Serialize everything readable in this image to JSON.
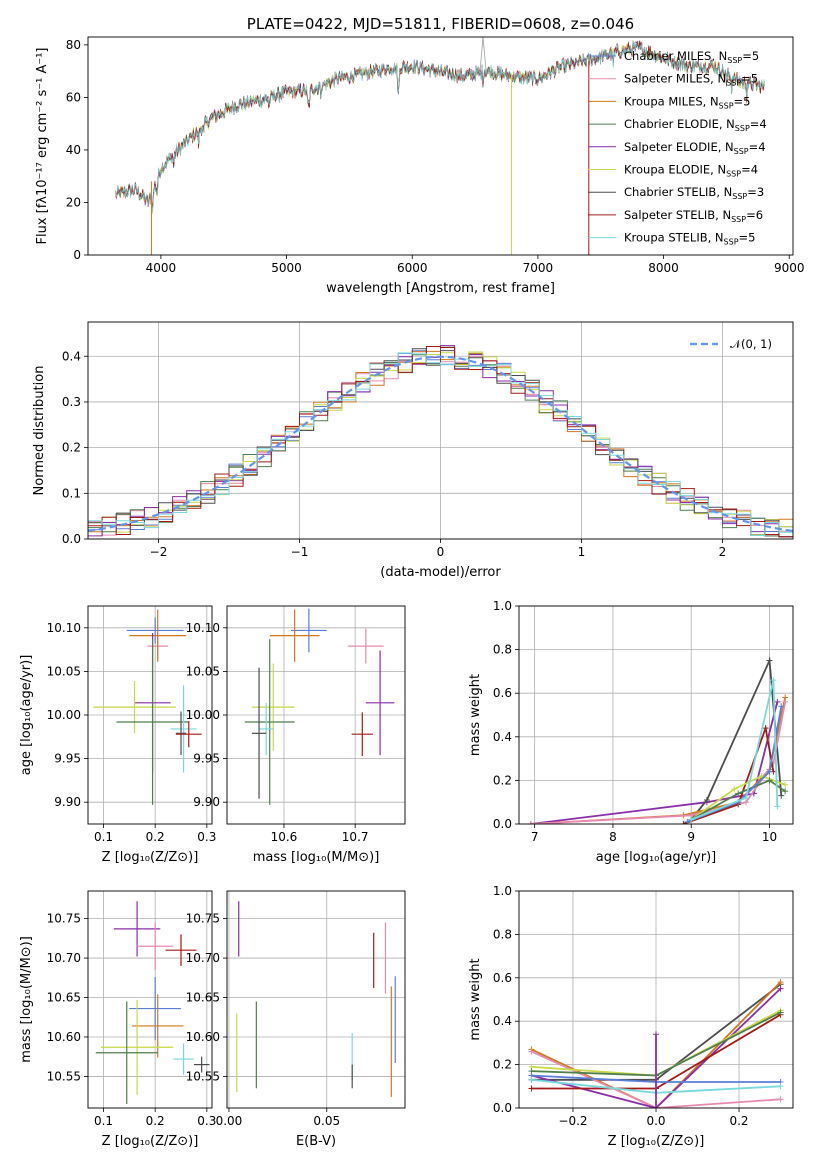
{
  "chart_data": [
    {
      "id": "spectrum",
      "type": "line",
      "title": "PLATE=0422, MJD=51811, FIBERID=0608, z=0.046",
      "xlabel": "wavelength [Angstrom, rest frame]",
      "ylabel": "Flux [fλ10⁻¹⁷ erg cm⁻² s⁻¹ A⁻¹]",
      "xlim": [
        3420,
        9030
      ],
      "ylim": [
        0,
        83
      ],
      "xticks": [
        4000,
        5000,
        6000,
        7000,
        8000,
        9000
      ],
      "yticks": [
        0,
        20,
        40,
        60,
        80
      ],
      "grid": false,
      "legend_position": "top-right",
      "continuum_x": [
        3640,
        3800,
        3900,
        4000,
        4100,
        4200,
        4400,
        4600,
        4800,
        5000,
        5200,
        5400,
        5600,
        5800,
        6000,
        6200,
        6400,
        6600,
        6800,
        7000,
        7200,
        7400,
        7600,
        7800,
        8000,
        8200,
        8400,
        8600,
        8800
      ],
      "continuum_y": [
        23,
        25,
        20,
        33,
        38,
        43,
        52,
        57,
        59,
        62,
        63,
        67,
        69,
        71,
        72,
        70,
        68,
        70,
        68,
        67,
        72,
        74,
        77,
        79,
        75,
        72,
        72,
        66,
        64
      ],
      "series": [
        {
          "name": "Chabrier MILES",
          "nssp": "5",
          "color": "#5a7fd6"
        },
        {
          "name": "Salpeter MILES",
          "nssp": "5",
          "color": "#e88aaf"
        },
        {
          "name": "Kroupa MILES",
          "nssp": "5",
          "color": "#d2781e"
        },
        {
          "name": "Chabrier ELODIE",
          "nssp": "4",
          "color": "#4f7f4c"
        },
        {
          "name": "Salpeter ELODIE",
          "nssp": "4",
          "color": "#8c2dab"
        },
        {
          "name": "Kroupa ELODIE",
          "nssp": "4",
          "color": "#c9d94a"
        },
        {
          "name": "Chabrier STELIB",
          "nssp": "3",
          "color": "#4d4d4d"
        },
        {
          "name": "Salpeter STELIB",
          "nssp": "6",
          "color": "#a61a1a"
        },
        {
          "name": "Kroupa STELIB",
          "nssp": "5",
          "color": "#79d9dd"
        }
      ]
    },
    {
      "id": "residuals",
      "type": "line",
      "xlabel": "(data-model)/error",
      "ylabel": "Normed distribution",
      "xlim": [
        -2.5,
        2.5
      ],
      "ylim": [
        0,
        0.475
      ],
      "xticks": [
        -2,
        -1,
        0,
        1,
        2
      ],
      "yticks": [
        0.0,
        0.1,
        0.2,
        0.3,
        0.4
      ],
      "grid": true,
      "legend_position": "top-right",
      "reference_label": "𝒩(0, 1)",
      "reference_color": "#6495ed"
    },
    {
      "id": "age-vs-Z",
      "type": "scatter",
      "xlabel": "Z [log₁₀(Z/Z⊙)]",
      "ylabel": "age  [log₁₀(age/yr)]",
      "xlim": [
        0.07,
        0.31
      ],
      "ylim": [
        9.875,
        10.125
      ],
      "xticks": [
        0.1,
        0.2,
        0.3
      ],
      "yticks": [
        9.9,
        9.95,
        10.0,
        10.05,
        10.1
      ],
      "points": [
        {
          "x": 0.2,
          "y": 10.097,
          "xerr": 0.055,
          "yerr": 0.015,
          "color": "#5a7fd6"
        },
        {
          "x": 0.205,
          "y": 10.079,
          "xerr": 0.02,
          "yerr": 0.015,
          "color": "#e88aaf"
        },
        {
          "x": 0.205,
          "y": 10.091,
          "xerr": 0.055,
          "yerr": 0.03,
          "color": "#d2781e"
        },
        {
          "x": 0.195,
          "y": 10.014,
          "xerr": 0.035,
          "yerr": 0.08,
          "color": "#8c2dab"
        },
        {
          "x": 0.16,
          "y": 10.009,
          "xerr": 0.08,
          "yerr": 0.03,
          "color": "#c9d94a"
        },
        {
          "x": 0.195,
          "y": 9.992,
          "xerr": 0.07,
          "yerr": 0.095,
          "color": "#4f7f4c"
        },
        {
          "x": 0.255,
          "y": 9.984,
          "xerr": 0.025,
          "yerr": 0.05,
          "color": "#79d9dd"
        },
        {
          "x": 0.25,
          "y": 9.979,
          "xerr": 0.01,
          "yerr": 0.025,
          "color": "#4d4d4d"
        },
        {
          "x": 0.265,
          "y": 9.978,
          "xerr": 0.025,
          "yerr": 0.015,
          "color": "#a61a1a"
        }
      ]
    },
    {
      "id": "age-vs-mass",
      "type": "scatter",
      "xlabel": "mass [log₁₀(M/M⊙)]",
      "xlim": [
        10.52,
        10.77
      ],
      "ylim": [
        9.875,
        10.125
      ],
      "xticks": [
        10.6,
        10.7
      ],
      "yticks": [
        9.9,
        9.95,
        10.0,
        10.05,
        10.1
      ],
      "points": [
        {
          "x": 10.635,
          "y": 10.097,
          "xerr": 0.025,
          "yerr": 0.025,
          "color": "#5a7fd6"
        },
        {
          "x": 10.715,
          "y": 10.079,
          "xerr": 0.025,
          "yerr": 0.02,
          "color": "#e88aaf"
        },
        {
          "x": 10.615,
          "y": 10.091,
          "xerr": 0.035,
          "yerr": 0.03,
          "color": "#d2781e"
        },
        {
          "x": 10.735,
          "y": 10.014,
          "xerr": 0.02,
          "yerr": 0.06,
          "color": "#8c2dab"
        },
        {
          "x": 10.585,
          "y": 10.009,
          "xerr": 0.03,
          "yerr": 0.05,
          "color": "#c9d94a"
        },
        {
          "x": 10.58,
          "y": 9.992,
          "xerr": 0.035,
          "yerr": 0.095,
          "color": "#4f7f4c"
        },
        {
          "x": 10.575,
          "y": 9.984,
          "xerr": 0.01,
          "yerr": 0.03,
          "color": "#79d9dd"
        },
        {
          "x": 10.565,
          "y": 9.979,
          "xerr": 0.01,
          "yerr": 0.075,
          "color": "#4d4d4d"
        },
        {
          "x": 10.71,
          "y": 9.978,
          "xerr": 0.015,
          "yerr": 0.025,
          "color": "#a61a1a"
        }
      ]
    },
    {
      "id": "mass-weight-vs-age",
      "type": "line",
      "xlabel": "age  [log₁₀(age/yr)]",
      "ylabel": "mass weight",
      "xlim": [
        6.8,
        10.3
      ],
      "ylim": [
        0,
        1.0
      ],
      "xticks": [
        7,
        8,
        9,
        10
      ],
      "yticks": [
        0.0,
        0.2,
        0.4,
        0.6,
        0.8,
        1.0
      ],
      "series": [
        {
          "color": "#8c2dab",
          "x": [
            6.95,
            9.2,
            9.8,
            10.1
          ],
          "y": [
            0.0,
            0.1,
            0.14,
            0.56
          ]
        },
        {
          "color": "#4d4d4d",
          "x": [
            9.0,
            9.2,
            10.0,
            10.15
          ],
          "y": [
            0.02,
            0.11,
            0.75,
            0.13
          ]
        },
        {
          "color": "#d2781e",
          "x": [
            6.95,
            8.9,
            9.6,
            10.0,
            10.2
          ],
          "y": [
            0.0,
            0.04,
            0.1,
            0.25,
            0.58
          ]
        },
        {
          "color": "#e88aaf",
          "x": [
            6.95,
            9.0,
            9.7,
            10.05,
            10.2
          ],
          "y": [
            0.0,
            0.04,
            0.1,
            0.28,
            0.56
          ]
        },
        {
          "color": "#a61a1a",
          "x": [
            8.9,
            9.6,
            9.95,
            10.05
          ],
          "y": [
            0.0,
            0.09,
            0.44,
            0.24
          ]
        },
        {
          "color": "#c9d94a",
          "x": [
            9.0,
            9.55,
            9.9,
            10.2
          ],
          "y": [
            0.02,
            0.16,
            0.22,
            0.18
          ]
        },
        {
          "color": "#4f7f4c",
          "x": [
            9.0,
            9.6,
            10.0,
            10.2
          ],
          "y": [
            0.02,
            0.14,
            0.2,
            0.15
          ]
        },
        {
          "color": "#5a7fd6",
          "x": [
            8.95,
            9.6,
            10.0,
            10.15
          ],
          "y": [
            0.01,
            0.1,
            0.24,
            0.54
          ]
        },
        {
          "color": "#79d9dd",
          "x": [
            9.0,
            9.7,
            10.05,
            10.1
          ],
          "y": [
            0.02,
            0.12,
            0.66,
            0.08
          ]
        }
      ]
    },
    {
      "id": "mass-vs-Z",
      "type": "scatter",
      "xlabel": "Z [log₁₀(Z/Z⊙)]",
      "ylabel": "mass [log₁₀(M/M⊙)]",
      "xlim": [
        0.07,
        0.31
      ],
      "ylim": [
        10.51,
        10.785
      ],
      "xticks": [
        0.1,
        0.2,
        0.3
      ],
      "yticks": [
        10.55,
        10.6,
        10.65,
        10.7,
        10.75
      ],
      "points": [
        {
          "x": 0.165,
          "y": 10.737,
          "xerr": 0.045,
          "yerr": 0.035,
          "color": "#8c2dab"
        },
        {
          "x": 0.2,
          "y": 10.715,
          "xerr": 0.035,
          "yerr": 0.03,
          "color": "#e88aaf"
        },
        {
          "x": 0.25,
          "y": 10.71,
          "xerr": 0.03,
          "yerr": 0.02,
          "color": "#a61a1a"
        },
        {
          "x": 0.2,
          "y": 10.636,
          "xerr": 0.05,
          "yerr": 0.04,
          "color": "#5a7fd6"
        },
        {
          "x": 0.205,
          "y": 10.614,
          "xerr": 0.05,
          "yerr": 0.04,
          "color": "#d2781e"
        },
        {
          "x": 0.165,
          "y": 10.587,
          "xerr": 0.07,
          "yerr": 0.06,
          "color": "#c9d94a"
        },
        {
          "x": 0.145,
          "y": 10.58,
          "xerr": 0.06,
          "yerr": 0.065,
          "color": "#4f7f4c"
        },
        {
          "x": 0.255,
          "y": 10.572,
          "xerr": 0.02,
          "yerr": 0.02,
          "color": "#79d9dd"
        },
        {
          "x": 0.29,
          "y": 10.565,
          "xerr": 0.015,
          "yerr": 0.01,
          "color": "#4d4d4d"
        }
      ]
    },
    {
      "id": "mass-vs-ebv",
      "type": "scatter",
      "xlabel": "E(B-V)",
      "xlim": [
        -0.001,
        0.09
      ],
      "ylim": [
        10.51,
        10.785
      ],
      "xticks": [
        0.0,
        0.05
      ],
      "yticks": [
        10.55,
        10.6,
        10.65,
        10.7,
        10.75
      ],
      "points": [
        {
          "x": 0.005,
          "y": 10.737,
          "yerr": 0.035,
          "color": "#8c2dab"
        },
        {
          "x": 0.08,
          "y": 10.7,
          "yerr": 0.045,
          "color": "#e88aaf"
        },
        {
          "x": 0.074,
          "y": 10.697,
          "yerr": 0.035,
          "color": "#a61a1a"
        },
        {
          "x": 0.085,
          "y": 10.622,
          "yerr": 0.055,
          "color": "#5a7fd6"
        },
        {
          "x": 0.083,
          "y": 10.594,
          "yerr": 0.07,
          "color": "#d2781e"
        },
        {
          "x": 0.004,
          "y": 10.58,
          "yerr": 0.05,
          "color": "#c9d94a"
        },
        {
          "x": 0.014,
          "y": 10.59,
          "yerr": 0.055,
          "color": "#4f7f4c"
        },
        {
          "x": 0.063,
          "y": 10.575,
          "yerr": 0.03,
          "color": "#79d9dd"
        },
        {
          "x": 0.063,
          "y": 10.55,
          "yerr": 0.015,
          "color": "#4d4d4d"
        }
      ]
    },
    {
      "id": "mass-weight-vs-Z",
      "type": "line",
      "xlabel": "Z [log₁₀(Z/Z⊙)]",
      "ylabel": "mass weight",
      "xlim": [
        -0.33,
        0.33
      ],
      "ylim": [
        0,
        1.0
      ],
      "xticks": [
        -0.2,
        0.0,
        0.2
      ],
      "yticks": [
        0.0,
        0.2,
        0.4,
        0.6,
        0.8,
        1.0
      ],
      "series": [
        {
          "color": "#4d4d4d",
          "x": [
            -0.3,
            0.0,
            0.3
          ],
          "y": [
            0.13,
            0.13,
            0.57
          ]
        },
        {
          "color": "#d2781e",
          "x": [
            -0.3,
            0.0,
            0.3
          ],
          "y": [
            0.27,
            0.0,
            0.58
          ]
        },
        {
          "color": "#e88aaf",
          "x": [
            -0.3,
            0.0,
            0.3
          ],
          "y": [
            0.26,
            0.0,
            0.04
          ]
        },
        {
          "color": "#8c2dab",
          "x": [
            -0.3,
            0.0,
            0.3
          ],
          "y": [
            0.15,
            0.0,
            0.55
          ]
        },
        {
          "color": "#a61a1a",
          "x": [
            -0.3,
            0.0,
            0.3
          ],
          "y": [
            0.09,
            0.09,
            0.43
          ]
        },
        {
          "color": "#c9d94a",
          "x": [
            -0.3,
            0.0,
            0.3
          ],
          "y": [
            0.19,
            0.15,
            0.45
          ]
        },
        {
          "color": "#4f7f4c",
          "x": [
            -0.3,
            0.0,
            0.3
          ],
          "y": [
            0.17,
            0.15,
            0.44
          ]
        },
        {
          "color": "#5a7fd6",
          "x": [
            -0.3,
            0.0,
            0.3
          ],
          "y": [
            0.15,
            0.12,
            0.12
          ]
        },
        {
          "color": "#79d9dd",
          "x": [
            -0.3,
            0.0,
            0.3
          ],
          "y": [
            0.13,
            0.07,
            0.1
          ]
        },
        {
          "color": "#8c2dab",
          "x": [
            0.0,
            0.0
          ],
          "y": [
            0.0,
            0.34
          ]
        }
      ]
    }
  ]
}
